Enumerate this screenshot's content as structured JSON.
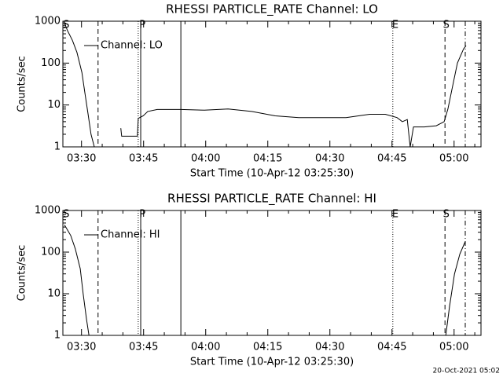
{
  "chart_data": [
    {
      "type": "line",
      "title": "RHESSI PARTICLE_RATE Channel: LO",
      "xlabel": "Start Time (10-Apr-12 03:25:30)",
      "ylabel": "Counts/sec",
      "x": [
        205.9,
        206.6,
        207.8,
        208.9,
        210.1,
        210.8,
        211.6,
        212.3,
        213.1,
        216.0,
        219.5,
        219.7,
        223.5,
        223.7,
        224.9,
        226.0,
        228.3,
        234.0,
        239.7,
        245.4,
        251.1,
        256.8,
        262.5,
        268.2,
        273.9,
        279.6,
        283.4,
        286.2,
        287.5,
        288.7,
        289.4,
        290.2,
        292.8,
        295.7,
        297.6,
        298.5,
        299.7,
        300.8,
        302.3,
        302.9
      ],
      "series": [
        {
          "name": "Channel: LO",
          "color": "#000000",
          "values": [
            900,
            600,
            350,
            180,
            60,
            20,
            6,
            2,
            1,
            null,
            2.8,
            1.8,
            1.8,
            4.8,
            5.5,
            7,
            7.8,
            7.8,
            7.5,
            8,
            7,
            5.5,
            5,
            5,
            5,
            6,
            6,
            5,
            4,
            4.5,
            1,
            3,
            3,
            3.2,
            4,
            8,
            30,
            100,
            220,
            260
          ]
        }
      ],
      "xlim": [
        205.5,
        306.5
      ],
      "xticks": [
        {
          "value": 210,
          "label": "03:30"
        },
        {
          "value": 225,
          "label": "03:45"
        },
        {
          "value": 240,
          "label": "04:00"
        },
        {
          "value": 255,
          "label": "04:15"
        },
        {
          "value": 270,
          "label": "04:30"
        },
        {
          "value": 285,
          "label": "04:45"
        },
        {
          "value": 300,
          "label": "05:00"
        }
      ],
      "ylim": [
        1,
        1000
      ],
      "yticks": [
        1,
        10,
        100,
        1000
      ],
      "yscale": "log",
      "legend": "upper left",
      "vlines": [
        {
          "x": 214.0,
          "style": "dashed"
        },
        {
          "x": 223.7,
          "style": "dotted"
        },
        {
          "x": 224.3,
          "style": "solid"
        },
        {
          "x": 234.0,
          "style": "solid"
        },
        {
          "x": 285.2,
          "style": "dotted"
        },
        {
          "x": 297.8,
          "style": "dashed"
        },
        {
          "x": 302.7,
          "style": "dashdot"
        }
      ],
      "flags": [
        {
          "x": 206.3,
          "label": "S"
        },
        {
          "x": 224.7,
          "label": "P"
        },
        {
          "x": 285.8,
          "label": "E"
        },
        {
          "x": 298.1,
          "label": "S"
        }
      ]
    },
    {
      "type": "line",
      "title": "RHESSI PARTICLE_RATE Channel: HI",
      "xlabel": "Start Time (10-Apr-12 03:25:30)",
      "ylabel": "Counts/sec",
      "x": [
        205.9,
        207.4,
        208.5,
        209.7,
        210.4,
        211.2,
        211.8,
        250.0,
        298.0,
        298.9,
        300.1,
        301.4,
        302.7
      ],
      "series": [
        {
          "name": "Channel: HI",
          "color": "#000000",
          "values": [
            450,
            250,
            120,
            40,
            10,
            2.5,
            1,
            null,
            1,
            5,
            30,
            90,
            180
          ]
        }
      ],
      "xlim": [
        205.5,
        306.5
      ],
      "xticks": [
        {
          "value": 210,
          "label": "03:30"
        },
        {
          "value": 225,
          "label": "03:45"
        },
        {
          "value": 240,
          "label": "04:00"
        },
        {
          "value": 255,
          "label": "04:15"
        },
        {
          "value": 270,
          "label": "04:30"
        },
        {
          "value": 285,
          "label": "04:45"
        },
        {
          "value": 300,
          "label": "05:00"
        }
      ],
      "ylim": [
        1,
        1000
      ],
      "yticks": [
        1,
        10,
        100,
        1000
      ],
      "yscale": "log",
      "legend": "upper left",
      "vlines": [
        {
          "x": 214.0,
          "style": "dashed"
        },
        {
          "x": 223.7,
          "style": "dotted"
        },
        {
          "x": 224.3,
          "style": "solid"
        },
        {
          "x": 234.0,
          "style": "solid"
        },
        {
          "x": 285.2,
          "style": "dotted"
        },
        {
          "x": 297.8,
          "style": "dashed"
        },
        {
          "x": 302.7,
          "style": "dashdot"
        }
      ],
      "flags": [
        {
          "x": 206.3,
          "label": "S"
        },
        {
          "x": 224.7,
          "label": "P"
        },
        {
          "x": 285.8,
          "label": "E"
        },
        {
          "x": 298.1,
          "label": "S"
        }
      ]
    }
  ],
  "footer": "20-Oct-2021 05:02"
}
